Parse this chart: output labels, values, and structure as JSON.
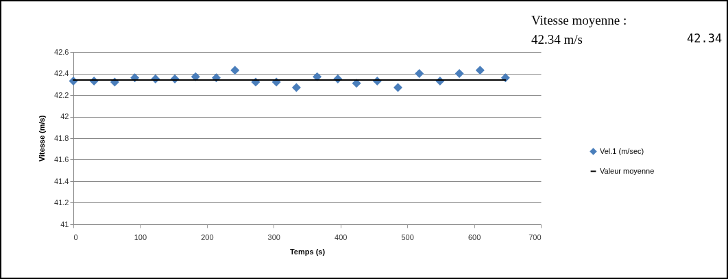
{
  "chart_data": {
    "type": "scatter",
    "xlabel": "Temps (s)",
    "ylabel": "Vitesse (m/s)",
    "x": [
      0,
      31,
      62,
      92,
      123,
      152,
      183,
      214,
      242,
      273,
      304,
      334,
      365,
      396,
      424,
      455,
      486,
      518,
      549,
      578,
      609,
      647
    ],
    "series": [
      {
        "name": "Vel.1 (m/sec)",
        "color": "#4a7ebb",
        "marker": "diamond",
        "values": [
          42.33,
          42.33,
          42.32,
          42.36,
          42.35,
          42.35,
          42.37,
          42.36,
          42.43,
          42.32,
          42.32,
          42.27,
          42.37,
          42.35,
          42.31,
          42.33,
          42.27,
          42.4,
          42.33,
          42.4,
          42.43,
          42.36
        ]
      },
      {
        "name": "Valeur moyenne",
        "type": "line",
        "color": "#000000",
        "marker": "none",
        "x": [
          0,
          647
        ],
        "values": [
          42.34,
          42.34
        ]
      }
    ],
    "xlim": [
      0,
      700
    ],
    "xticks": [
      0,
      100,
      200,
      300,
      400,
      500,
      600,
      700
    ],
    "ylim": [
      41,
      42.6
    ],
    "yticks": [
      41,
      41.2,
      41.4,
      41.6,
      41.8,
      42,
      42.2,
      42.4,
      42.6
    ],
    "grid": "y",
    "legend": "right",
    "annotations": [
      "Vitesse moyenne : 42.34 m/s",
      "42.34"
    ]
  }
}
